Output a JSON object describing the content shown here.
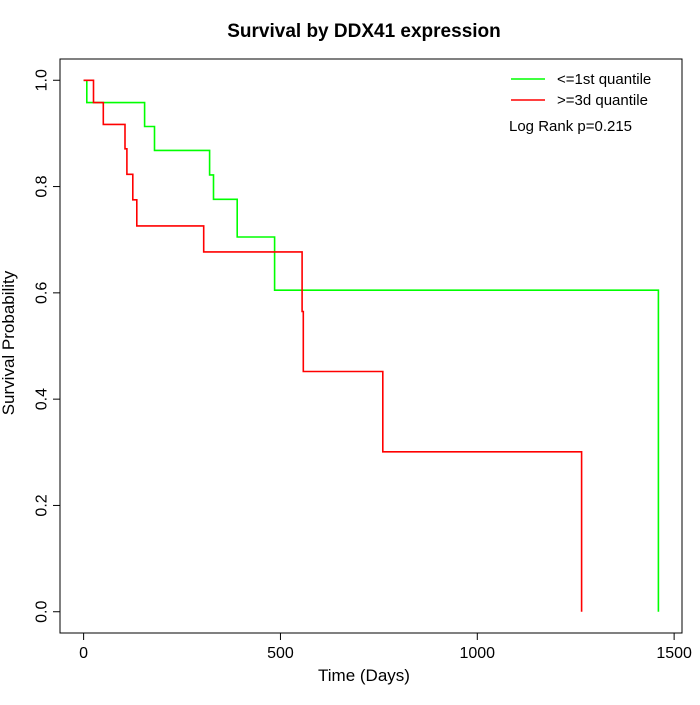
{
  "chart_data": {
    "type": "line",
    "subtype": "kaplan-meier step",
    "title": "Survival by DDX41 expression",
    "xlabel": "Time (Days)",
    "ylabel": "Survival Probability",
    "xlim": [
      -60,
      1520
    ],
    "ylim": [
      -0.04,
      1.04
    ],
    "xticks": [
      0,
      500,
      1000,
      1500
    ],
    "yticks": [
      0.0,
      0.2,
      0.4,
      0.6,
      0.8,
      1.0
    ],
    "xtick_labels": [
      "0",
      "500",
      "1000",
      "1500"
    ],
    "ytick_labels": [
      "0.0",
      "0.2",
      "0.4",
      "0.6",
      "0.8",
      "1.0"
    ],
    "grid": false,
    "legend_position": "top-right",
    "annotation": "Log Rank p=0.215",
    "series": [
      {
        "name": "<=1st quantile",
        "color": "#00ff00",
        "times": [
          0,
          8,
          155,
          180,
          320,
          330,
          390,
          485,
          1460
        ],
        "survival": [
          1.0,
          0.958,
          0.913,
          0.868,
          0.822,
          0.776,
          0.705,
          0.605,
          0.0
        ]
      },
      {
        "name": ">=3d quantile",
        "color": "#ff0000",
        "times": [
          0,
          25,
          50,
          105,
          110,
          125,
          135,
          305,
          555,
          558,
          760,
          1265
        ],
        "survival": [
          1.0,
          0.958,
          0.917,
          0.871,
          0.823,
          0.775,
          0.726,
          0.677,
          0.565,
          0.452,
          0.301,
          0.0
        ]
      }
    ]
  }
}
